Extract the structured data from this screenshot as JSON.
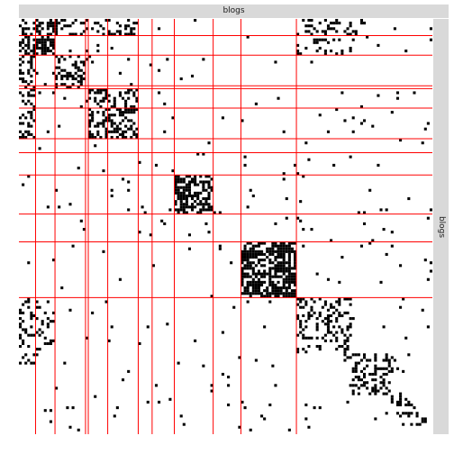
{
  "chart_data": {
    "type": "heatmap",
    "title": "",
    "facet_label_top": "blogs",
    "facet_label_right": "blogs",
    "matrix_size": 1490,
    "block_boundaries": [
      60,
      130,
      240,
      250,
      320,
      430,
      480,
      560,
      700,
      800,
      1000
    ],
    "colors": {
      "cell": "#000000",
      "boundary": "#ff0000",
      "background": "#ffffff",
      "strip": "#d9d9d9"
    },
    "dense_blocks": [
      {
        "rows": [
          0,
          60
        ],
        "cols": [
          0,
          60
        ],
        "density": 0.45
      },
      {
        "rows": [
          60,
          130
        ],
        "cols": [
          60,
          130
        ],
        "density": 0.75
      },
      {
        "rows": [
          0,
          60
        ],
        "cols": [
          60,
          130
        ],
        "density": 0.55
      },
      {
        "rows": [
          0,
          60
        ],
        "cols": [
          130,
          250
        ],
        "density": 0.35
      },
      {
        "rows": [
          0,
          60
        ],
        "cols": [
          250,
          320
        ],
        "density": 0.25
      },
      {
        "rows": [
          130,
          240
        ],
        "cols": [
          0,
          60
        ],
        "density": 0.35
      },
      {
        "rows": [
          130,
          240
        ],
        "cols": [
          130,
          250
        ],
        "density": 0.4
      },
      {
        "rows": [
          250,
          320
        ],
        "cols": [
          0,
          60
        ],
        "density": 0.25
      },
      {
        "rows": [
          250,
          320
        ],
        "cols": [
          250,
          320
        ],
        "density": 0.4
      },
      {
        "rows": [
          250,
          320
        ],
        "cols": [
          320,
          430
        ],
        "density": 0.35
      },
      {
        "rows": [
          320,
          430
        ],
        "cols": [
          0,
          60
        ],
        "density": 0.3
      },
      {
        "rows": [
          320,
          430
        ],
        "cols": [
          250,
          320
        ],
        "density": 0.3
      },
      {
        "rows": [
          320,
          430
        ],
        "cols": [
          320,
          430
        ],
        "density": 0.45
      },
      {
        "rows": [
          560,
          700
        ],
        "cols": [
          560,
          700
        ],
        "density": 0.55
      },
      {
        "rows": [
          800,
          1000
        ],
        "cols": [
          800,
          1000
        ],
        "density": 0.7
      },
      {
        "rows": [
          1000,
          1200
        ],
        "cols": [
          1000,
          1200
        ],
        "density": 0.3
      },
      {
        "rows": [
          1200,
          1350
        ],
        "cols": [
          1200,
          1350
        ],
        "density": 0.3
      },
      {
        "rows": [
          0,
          60
        ],
        "cols": [
          1000,
          1250
        ],
        "density": 0.25
      },
      {
        "rows": [
          1000,
          1200
        ],
        "cols": [
          60,
          130
        ],
        "density": 0.2
      }
    ],
    "background_density": 0.012
  }
}
